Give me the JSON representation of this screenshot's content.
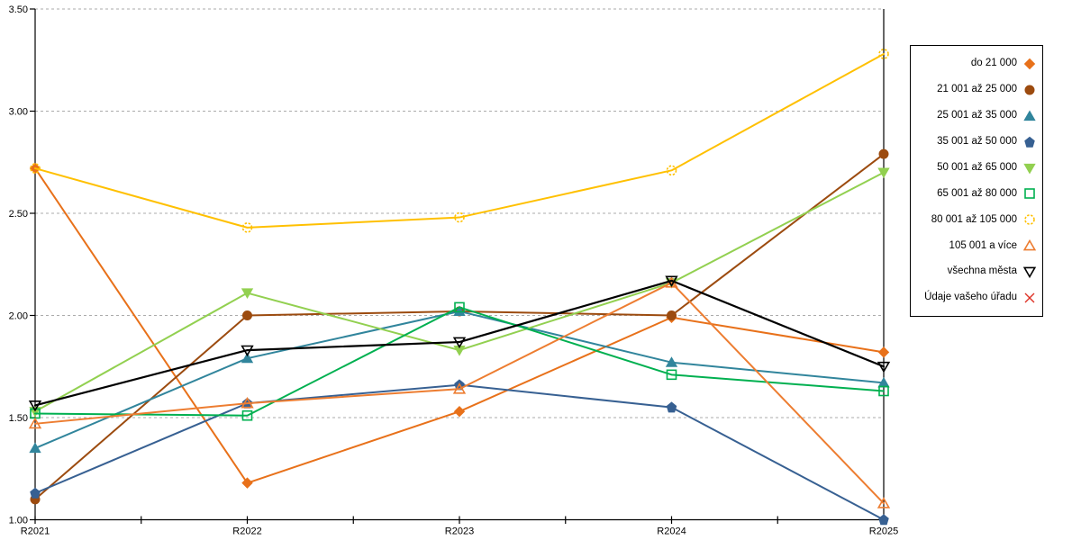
{
  "chart_data": {
    "type": "line",
    "title": "",
    "xlabel": "",
    "ylabel": "",
    "x_categories": [
      "R2021",
      "R2022",
      "R2023",
      "R2024",
      "R2025"
    ],
    "y_tick_labels": [
      "1.00",
      "1.50",
      "2.00",
      "2.50",
      "3.00",
      "3.50"
    ],
    "y_tick_values": [
      1.0,
      1.5,
      2.0,
      2.5,
      3.0,
      3.5
    ],
    "ylim": [
      1.0,
      3.5
    ],
    "grid": "horizontal dotted gridlines at each 0.50",
    "legend_position": "right",
    "axis_color": "#000000",
    "gridline_color": "#ababab",
    "series": [
      {
        "name": "do 21 000",
        "marker": "diamond",
        "filled": true,
        "color": "#E8711A",
        "values": [
          2.72,
          1.18,
          1.53,
          1.99,
          1.82
        ]
      },
      {
        "name": "21 001 až 25 000",
        "marker": "circle",
        "filled": true,
        "color": "#9C4B0F",
        "values": [
          1.1,
          2.0,
          2.02,
          2.0,
          2.79
        ]
      },
      {
        "name": "25 001 až 35 000",
        "marker": "triangle-up",
        "filled": true,
        "color": "#31859C",
        "values": [
          1.35,
          1.79,
          2.02,
          1.77,
          1.67
        ]
      },
      {
        "name": "35 001 až 50 000",
        "marker": "pentagon",
        "filled": true,
        "color": "#376092",
        "values": [
          1.13,
          1.57,
          1.66,
          1.55,
          1.0
        ]
      },
      {
        "name": "50 001 až 65 000",
        "marker": "triangle-down",
        "filled": true,
        "color": "#92D050",
        "values": [
          1.53,
          2.11,
          1.83,
          2.16,
          2.7
        ]
      },
      {
        "name": "65 001 až 80 000",
        "marker": "square",
        "filled": false,
        "color": "#00B050",
        "values": [
          1.52,
          1.51,
          2.04,
          1.71,
          1.63
        ]
      },
      {
        "name": "80 001 až 105 000",
        "marker": "circle",
        "filled": false,
        "dashed_marker": true,
        "color": "#FFC000",
        "values": [
          2.72,
          2.43,
          2.48,
          2.71,
          3.28
        ]
      },
      {
        "name": "105 001 a více",
        "marker": "triangle-up",
        "filled": false,
        "color": "#ED7D31",
        "values": [
          1.47,
          1.57,
          1.64,
          2.16,
          1.08
        ]
      },
      {
        "name": "všechna města",
        "marker": "triangle-down",
        "filled": false,
        "color": "#000000",
        "values": [
          1.56,
          1.83,
          1.87,
          2.17,
          1.75
        ]
      },
      {
        "name": "Údaje vašeho úřadu",
        "marker": "x",
        "filled": false,
        "color": "#DE3226",
        "values": []
      }
    ]
  }
}
